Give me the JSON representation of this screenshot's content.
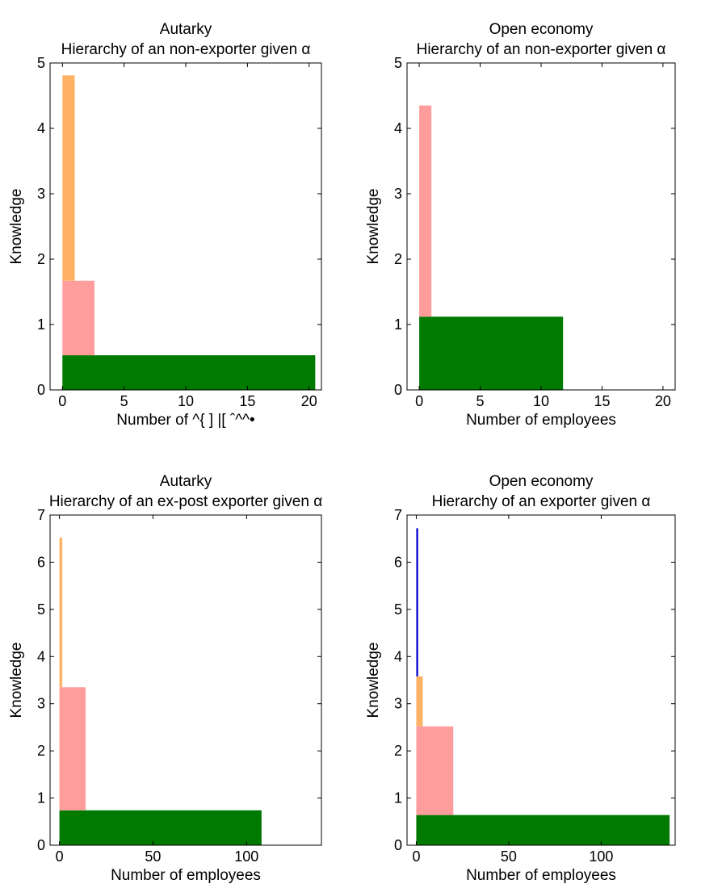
{
  "chart_data": [
    {
      "type": "bar",
      "title": "Autarky",
      "subtitle": "Hierarchy of an non-exporter given α",
      "xlabel": "Number of ^{  ] |[ ˆ^^•",
      "ylabel": "Knowledge",
      "xlim": [
        -1,
        21
      ],
      "ylim": [
        0,
        5
      ],
      "xticks": [
        0,
        5,
        10,
        15,
        20
      ],
      "yticks": [
        0,
        1,
        2,
        3,
        4,
        5
      ],
      "layers": [
        {
          "color": "#007a00",
          "width": 20.5,
          "y_bottom": 0.0,
          "y_top": 0.53
        },
        {
          "color": "#ff9d9d",
          "width": 2.6,
          "y_bottom": 0.53,
          "y_top": 1.67
        },
        {
          "color": "#ffb266",
          "width": 1.0,
          "y_bottom": 1.67,
          "y_top": 4.81
        }
      ]
    },
    {
      "type": "bar",
      "title": "Open economy",
      "subtitle": "Hierarchy of an non-exporter given α",
      "xlabel": "Number of employees",
      "ylabel": "Knowledge",
      "xlim": [
        -1,
        21
      ],
      "ylim": [
        0,
        5
      ],
      "xticks": [
        0,
        5,
        10,
        15,
        20
      ],
      "yticks": [
        0,
        1,
        2,
        3,
        4,
        5
      ],
      "layers": [
        {
          "color": "#007a00",
          "width": 11.8,
          "y_bottom": 0.0,
          "y_top": 1.12
        },
        {
          "color": "#ff9d9d",
          "width": 1.0,
          "y_bottom": 1.12,
          "y_top": 4.35
        }
      ]
    },
    {
      "type": "bar",
      "title": "Autarky",
      "subtitle": "Hierarchy of an ex-post exporter given α",
      "xlabel": "Number of employees",
      "ylabel": "Knowledge",
      "xlim": [
        -5,
        140
      ],
      "ylim": [
        0,
        7
      ],
      "xticks": [
        0,
        50,
        100
      ],
      "yticks": [
        0,
        1,
        2,
        3,
        4,
        5,
        6,
        7
      ],
      "layers": [
        {
          "color": "#007a00",
          "width": 108,
          "y_bottom": 0.0,
          "y_top": 0.74
        },
        {
          "color": "#ff9d9d",
          "width": 14,
          "y_bottom": 0.74,
          "y_top": 3.35
        },
        {
          "color": "#ffb266",
          "width": 1.5,
          "y_bottom": 3.35,
          "y_top": 6.52
        }
      ]
    },
    {
      "type": "bar",
      "title": "Open economy",
      "subtitle": "Hierarchy of an exporter given α",
      "xlabel": "Number of employees",
      "ylabel": "Knowledge",
      "xlim": [
        -5,
        140
      ],
      "ylim": [
        0,
        7
      ],
      "xticks": [
        0,
        50,
        100
      ],
      "yticks": [
        0,
        1,
        2,
        3,
        4,
        5,
        6,
        7
      ],
      "layers": [
        {
          "color": "#007a00",
          "width": 137,
          "y_bottom": 0.0,
          "y_top": 0.64
        },
        {
          "color": "#ff9d9d",
          "width": 20,
          "y_bottom": 0.64,
          "y_top": 2.52
        },
        {
          "color": "#ffb266",
          "width": 3.5,
          "y_bottom": 2.52,
          "y_top": 3.58
        },
        {
          "color": "#0000cc",
          "width": 1.0,
          "y_bottom": 3.58,
          "y_top": 6.72
        }
      ]
    }
  ]
}
